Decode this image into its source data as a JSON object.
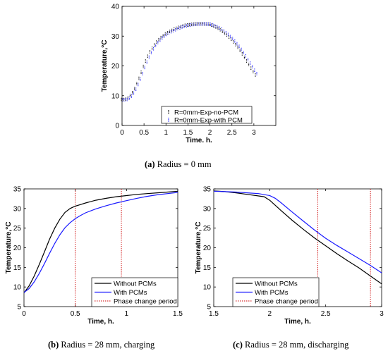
{
  "captions": {
    "a": {
      "label": "(a)",
      "text": " Radius = 0 mm"
    },
    "b": {
      "label": "(b)",
      "text": " Radius = 28 mm, charging"
    },
    "c": {
      "label": "(c)",
      "text": " Radius = 28 mm, discharging"
    }
  },
  "chart_data": [
    {
      "id": "a",
      "type": "scatter",
      "xlabel": "Time. h.",
      "ylabel": "Temperature,°C",
      "xlim": [
        0,
        3.5
      ],
      "ylim": [
        0,
        40
      ],
      "xticks": [
        0,
        0.5,
        1,
        1.5,
        2,
        2.5,
        3
      ],
      "xtick_labels": [
        "0",
        "0.5",
        "1",
        "1.5",
        "2",
        "2.5",
        "3"
      ],
      "yticks": [
        0,
        10,
        20,
        30,
        40
      ],
      "ytick_labels": [
        "0",
        "10",
        "20",
        "30",
        "40"
      ],
      "legend_position": "bottom-right",
      "grid": false,
      "series": [
        {
          "name": "R=0mm-Exp-no-PCM",
          "color": "#000000",
          "x": [
            0.0,
            0.05,
            0.1,
            0.15,
            0.2,
            0.25,
            0.3,
            0.35,
            0.4,
            0.45,
            0.5,
            0.55,
            0.6,
            0.65,
            0.7,
            0.75,
            0.8,
            0.85,
            0.9,
            0.95,
            1.0,
            1.05,
            1.1,
            1.15,
            1.2,
            1.25,
            1.3,
            1.35,
            1.4,
            1.45,
            1.5,
            1.55,
            1.6,
            1.65,
            1.7,
            1.75,
            1.8,
            1.85,
            1.9,
            1.95,
            2.0,
            2.05,
            2.1,
            2.15,
            2.2,
            2.25,
            2.3,
            2.35,
            2.4,
            2.45,
            2.5,
            2.55,
            2.6,
            2.65,
            2.7,
            2.75,
            2.8,
            2.85,
            2.9,
            2.95,
            3.0,
            3.05
          ],
          "y": [
            8.7,
            8.7,
            8.8,
            9.2,
            10.0,
            11.0,
            12.3,
            14.0,
            15.8,
            17.8,
            19.8,
            21.6,
            23.2,
            24.7,
            25.9,
            27.0,
            28.0,
            28.8,
            29.5,
            30.1,
            30.7,
            31.1,
            31.5,
            31.9,
            32.3,
            32.6,
            32.9,
            33.1,
            33.4,
            33.6,
            33.7,
            33.8,
            33.9,
            34.0,
            34.0,
            34.1,
            34.1,
            34.1,
            34.0,
            34.0,
            33.9,
            33.6,
            33.3,
            33.0,
            32.6,
            32.1,
            31.5,
            30.9,
            30.3,
            29.6,
            28.9,
            28.0,
            27.1,
            26.2,
            25.1,
            24.0,
            22.8,
            21.6,
            20.4,
            19.2,
            18.0,
            16.9
          ]
        },
        {
          "name": "R=0mm-Exp-with PCM",
          "color": "#1a1aff",
          "x": [
            0.0,
            0.05,
            0.1,
            0.15,
            0.2,
            0.25,
            0.3,
            0.35,
            0.4,
            0.45,
            0.5,
            0.55,
            0.6,
            0.65,
            0.7,
            0.75,
            0.8,
            0.85,
            0.9,
            0.95,
            1.0,
            1.05,
            1.1,
            1.15,
            1.2,
            1.25,
            1.3,
            1.35,
            1.4,
            1.45,
            1.5,
            1.55,
            1.6,
            1.65,
            1.7,
            1.75,
            1.8,
            1.85,
            1.9,
            1.95,
            2.0,
            2.05,
            2.1,
            2.15,
            2.2,
            2.25,
            2.3,
            2.35,
            2.4,
            2.45,
            2.5,
            2.55,
            2.6,
            2.65,
            2.7,
            2.75,
            2.8,
            2.85,
            2.9,
            2.95,
            3.0,
            3.05
          ],
          "y": [
            8.6,
            8.6,
            8.7,
            9.1,
            9.8,
            10.8,
            12.1,
            13.7,
            15.5,
            17.4,
            19.4,
            21.2,
            22.9,
            24.4,
            25.7,
            26.8,
            27.8,
            28.6,
            29.4,
            30.0,
            30.5,
            31.0,
            31.4,
            31.8,
            32.1,
            32.5,
            32.7,
            33.0,
            33.2,
            33.4,
            33.6,
            33.7,
            33.8,
            33.9,
            34.0,
            34.0,
            34.0,
            34.1,
            34.0,
            34.0,
            33.9,
            33.7,
            33.4,
            33.1,
            32.7,
            32.3,
            31.7,
            31.1,
            30.5,
            29.8,
            29.1,
            28.3,
            27.4,
            26.5,
            25.5,
            24.4,
            23.3,
            22.1,
            20.9,
            19.7,
            18.5,
            17.4
          ]
        }
      ]
    },
    {
      "id": "b",
      "type": "line",
      "xlabel": "Time, h.",
      "ylabel": "Temperature,°C",
      "xlim": [
        0,
        1.5
      ],
      "ylim": [
        5,
        35
      ],
      "xticks": [
        0,
        0.5,
        1,
        1.5
      ],
      "xtick_labels": [
        "0",
        "0.5",
        "1",
        "1.5"
      ],
      "yticks": [
        5,
        10,
        15,
        20,
        25,
        30,
        35
      ],
      "ytick_labels": [
        "5",
        "10",
        "15",
        "20",
        "25",
        "30",
        "35"
      ],
      "legend_position": "bottom-right",
      "grid": false,
      "vlines": [
        0.5,
        0.95
      ],
      "series": [
        {
          "name": "Without PCMs",
          "color": "#000000",
          "x": [
            0.0,
            0.05,
            0.1,
            0.15,
            0.2,
            0.25,
            0.3,
            0.35,
            0.4,
            0.45,
            0.5,
            0.55,
            0.6,
            0.7,
            0.8,
            0.9,
            1.0,
            1.1,
            1.2,
            1.3,
            1.4,
            1.5
          ],
          "y": [
            8.5,
            10.3,
            12.8,
            15.8,
            19.0,
            22.2,
            25.0,
            27.3,
            29.0,
            30.0,
            30.6,
            31.0,
            31.4,
            32.1,
            32.6,
            33.0,
            33.3,
            33.6,
            33.8,
            34.0,
            34.2,
            34.4
          ]
        },
        {
          "name": "With PCMs",
          "color": "#1a1aff",
          "x": [
            0.0,
            0.05,
            0.1,
            0.15,
            0.2,
            0.25,
            0.3,
            0.35,
            0.4,
            0.45,
            0.5,
            0.55,
            0.6,
            0.7,
            0.8,
            0.9,
            1.0,
            1.1,
            1.2,
            1.3,
            1.4,
            1.5
          ],
          "y": [
            8.6,
            9.6,
            11.3,
            13.5,
            16.0,
            18.6,
            21.1,
            23.3,
            25.1,
            26.4,
            27.4,
            28.2,
            28.9,
            29.9,
            30.7,
            31.4,
            32.0,
            32.6,
            33.1,
            33.5,
            33.8,
            34.1
          ]
        },
        {
          "name": "Phase change period",
          "color": "#cc0000",
          "style": "dotted"
        }
      ]
    },
    {
      "id": "c",
      "type": "line",
      "xlabel": "Time, h.",
      "ylabel": "Temperature,°C",
      "xlim": [
        1.5,
        3
      ],
      "ylim": [
        5,
        35
      ],
      "xticks": [
        1.5,
        2,
        2.5,
        3
      ],
      "xtick_labels": [
        "1.5",
        "2",
        "2.5",
        "3"
      ],
      "yticks": [
        5,
        10,
        15,
        20,
        25,
        30,
        35
      ],
      "ytick_labels": [
        "5",
        "10",
        "15",
        "20",
        "25",
        "30",
        "35"
      ],
      "legend_position": "bottom-left",
      "grid": false,
      "vlines": [
        2.43,
        2.9
      ],
      "series": [
        {
          "name": "Without PCMs",
          "color": "#000000",
          "x": [
            1.5,
            1.6,
            1.7,
            1.8,
            1.9,
            1.95,
            2.0,
            2.1,
            2.2,
            2.3,
            2.4,
            2.5,
            2.6,
            2.7,
            2.8,
            2.9,
            3.0
          ],
          "y": [
            34.5,
            34.3,
            34.0,
            33.6,
            33.2,
            33.0,
            32.1,
            29.5,
            27.0,
            24.7,
            22.5,
            20.5,
            18.5,
            16.6,
            14.8,
            12.8,
            10.8
          ]
        },
        {
          "name": "With PCMs",
          "color": "#1a1aff",
          "x": [
            1.5,
            1.6,
            1.7,
            1.8,
            1.9,
            2.0,
            2.05,
            2.1,
            2.2,
            2.3,
            2.4,
            2.5,
            2.6,
            2.7,
            2.8,
            2.9,
            3.0
          ],
          "y": [
            34.4,
            34.3,
            34.2,
            34.0,
            33.8,
            33.3,
            32.6,
            31.5,
            29.1,
            26.8,
            24.5,
            22.4,
            20.6,
            18.9,
            17.2,
            15.5,
            13.6
          ]
        },
        {
          "name": "Phase change period",
          "color": "#cc0000",
          "style": "dotted"
        }
      ]
    }
  ]
}
